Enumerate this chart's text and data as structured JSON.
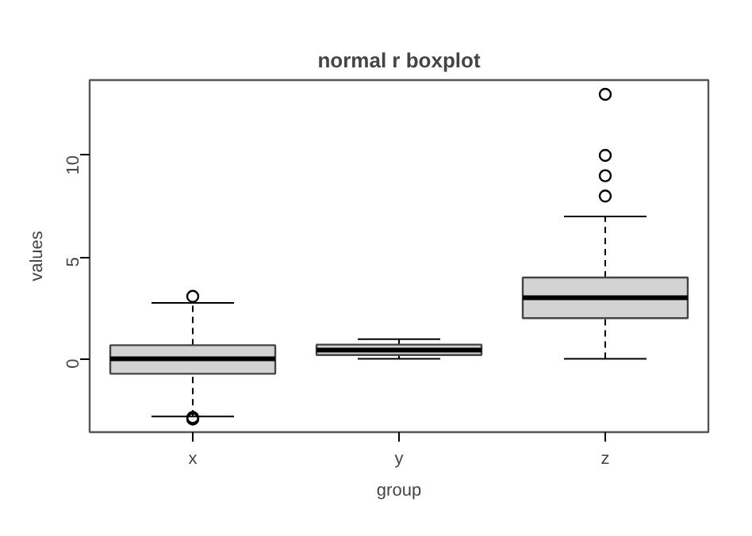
{
  "chart_data": {
    "type": "box",
    "title": "normal r boxplot",
    "xlabel": "group",
    "ylabel": "values",
    "categories": [
      "x",
      "y",
      "z"
    ],
    "color": "#d3d3d3",
    "boxes": [
      {
        "low": -2.83,
        "q1": -0.73,
        "median": 0,
        "q3": 0.67,
        "high": 2.75,
        "outliers": [
          3.07,
          -2.88,
          -2.96
        ]
      },
      {
        "low": 0,
        "q1": 0.19,
        "median": 0.43,
        "q3": 0.7,
        "high": 0.97
      },
      {
        "low": 0,
        "q1": 2,
        "median": 3,
        "q3": 4,
        "high": 7,
        "outliers": [
          8,
          9,
          10,
          13
        ]
      }
    ],
    "ylim": [
      -3.6,
      13.7
    ],
    "yticks": [
      0,
      5,
      10
    ],
    "grid": false
  }
}
